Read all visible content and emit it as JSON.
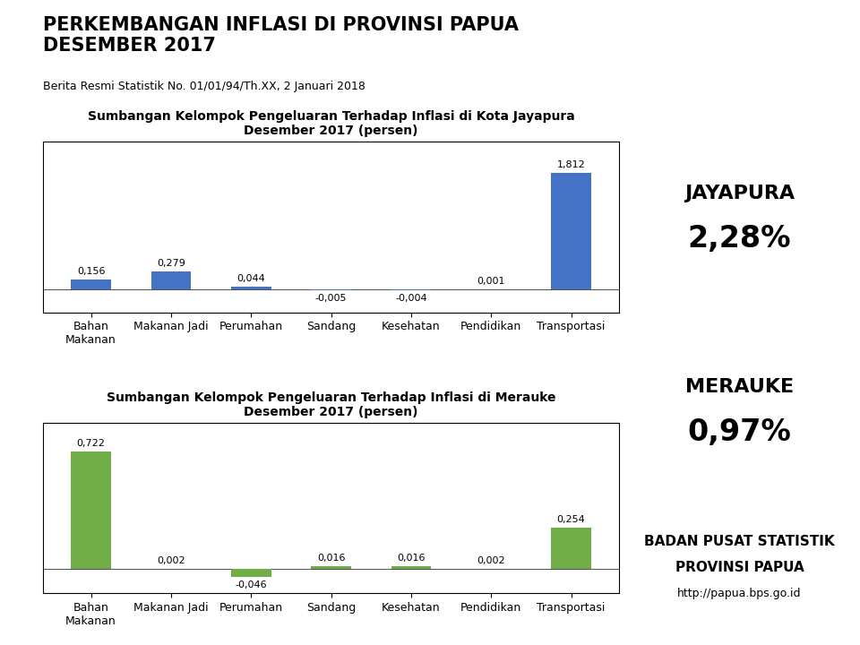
{
  "title": "PERKEMBANGAN INFLASI DI PROVINSI PAPUA\nDESEMBER 2017",
  "subtitle": "Berita Resmi Statistik No. 01/01/94/Th.XX, 2 Januari 2018",
  "annotations": [
    "JAYAPURA",
    "2,28%",
    "MERAUKE",
    "0,97%",
    "BADAN PUSAT STATISTIK",
    "PROVINSI PAPUA",
    "http://papua.bps.go.id"
  ],
  "chart_data": [
    {
      "type": "bar",
      "title": "Sumbangan Kelompok Pengeluaran Terhadap Inflasi di Kota Jayapura\nDesember 2017 (persen)",
      "categories": [
        "Bahan\nMakanan",
        "Makanan Jadi",
        "Perumahan",
        "Sandang",
        "Kesehatan",
        "Pendidikan",
        "Transportasi"
      ],
      "values": [
        0.156,
        0.279,
        0.044,
        -0.005,
        -0.004,
        0.001,
        1.812
      ],
      "value_labels": [
        "0,156",
        "0,279",
        "0,044",
        "-0,005",
        "-0,004",
        "0,001",
        "1,812"
      ],
      "color": "#4472c4",
      "ylim": [
        -0.35,
        2.3
      ],
      "data_labels": true,
      "tick_labels": "x",
      "grid": false
    },
    {
      "type": "bar",
      "title": "Sumbangan Kelompok Pengeluaran Terhadap Inflasi di Merauke\nDesember 2017 (persen)",
      "categories": [
        "Bahan\nMakanan",
        "Makanan Jadi",
        "Perumahan",
        "Sandang",
        "Kesehatan",
        "Pendidikan",
        "Transportasi"
      ],
      "values": [
        0.722,
        0.002,
        -0.046,
        0.016,
        0.016,
        0.002,
        0.254
      ],
      "value_labels": [
        "0,722",
        "0,002",
        "-0,046",
        "0,016",
        "0,016",
        "0,002",
        "0,254"
      ],
      "color": "#70ad47",
      "ylim": [
        -0.15,
        0.9
      ],
      "data_labels": true,
      "tick_labels": "x",
      "grid": false
    }
  ]
}
